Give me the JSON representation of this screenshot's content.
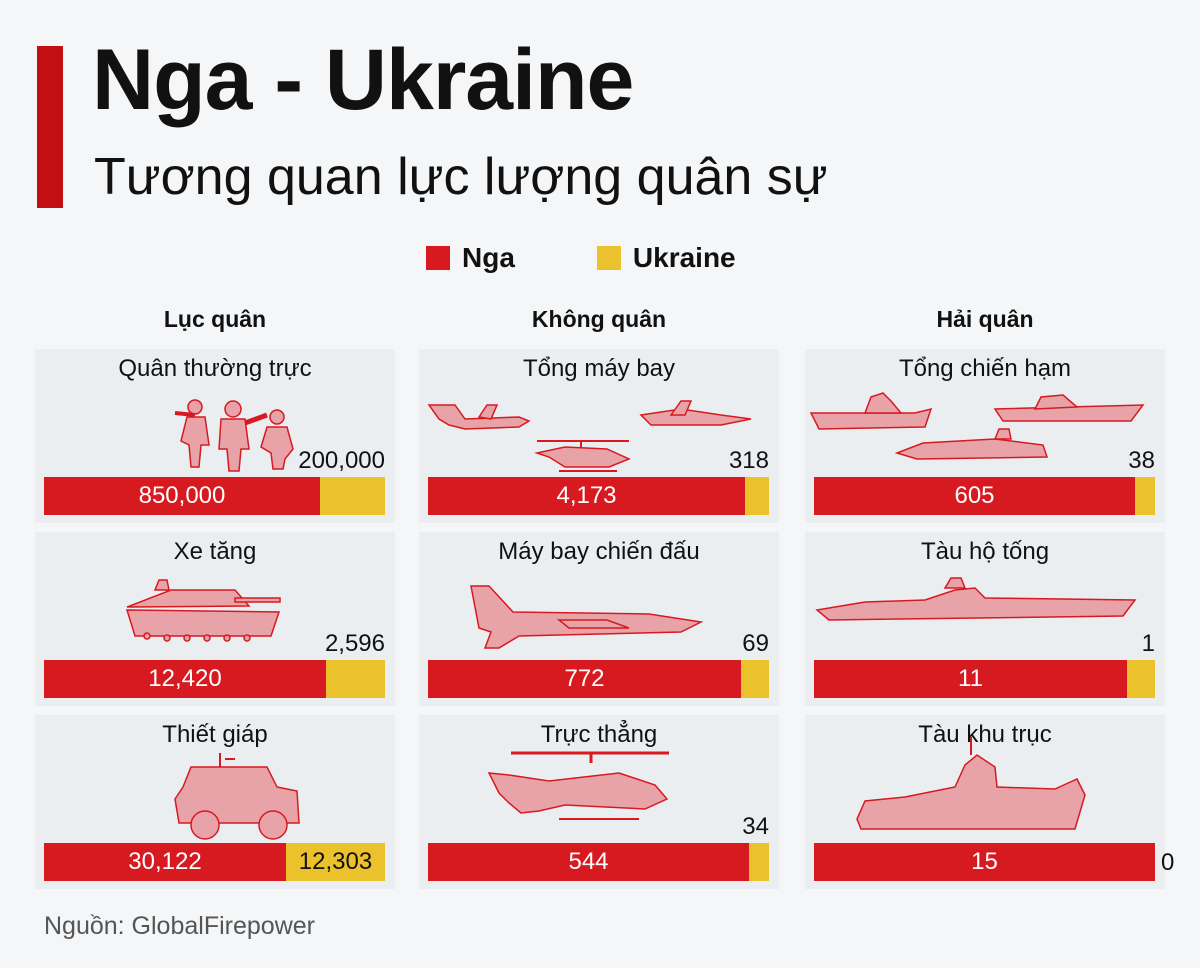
{
  "header": {
    "title": "Nga - Ukraine",
    "subtitle": "Tương quan lực lượng quân sự"
  },
  "colors": {
    "russia": "#d71920",
    "ukraine": "#ebc22b",
    "accent": "#c20f14",
    "panel": "#ebeef1",
    "background": "#f4f6f8"
  },
  "legend": {
    "russia": "Nga",
    "ukraine": "Ukraine"
  },
  "source": "Nguồn: GlobalFirepower",
  "chart_data": {
    "type": "bar",
    "orientation": "horizontal-stacked-normalized",
    "title": "Tương quan lực lượng quân sự",
    "series": [
      {
        "name": "Nga",
        "color": "#d71920"
      },
      {
        "name": "Ukraine",
        "color": "#ebc22b"
      }
    ],
    "groups": [
      {
        "name": "Lục quân",
        "items": [
          {
            "label": "Quân thường trực",
            "icon": "soldiers-icon",
            "russia": 850000,
            "ukraine": 200000,
            "russia_label": "850,000",
            "ukraine_label": "200,000"
          },
          {
            "label": "Xe tăng",
            "icon": "tank-icon",
            "russia": 12420,
            "ukraine": 2596,
            "russia_label": "12,420",
            "ukraine_label": "2,596"
          },
          {
            "label": "Thiết giáp",
            "icon": "armored-vehicle-icon",
            "russia": 30122,
            "ukraine": 12303,
            "russia_label": "30,122",
            "ukraine_label": "12,303"
          }
        ]
      },
      {
        "name": "Không quân",
        "items": [
          {
            "label": "Tổng máy bay",
            "icon": "aircraft-icon",
            "russia": 4173,
            "ukraine": 318,
            "russia_label": "4,173",
            "ukraine_label": "318"
          },
          {
            "label": "Máy bay chiến đấu",
            "icon": "fighter-jet-icon",
            "russia": 772,
            "ukraine": 69,
            "russia_label": "772",
            "ukraine_label": "69"
          },
          {
            "label": "Trực thẳng",
            "icon": "helicopter-icon",
            "russia": 544,
            "ukraine": 34,
            "russia_label": "544",
            "ukraine_label": "34"
          }
        ]
      },
      {
        "name": "Hải quân",
        "items": [
          {
            "label": "Tổng chiến hạm",
            "icon": "warships-icon",
            "russia": 605,
            "ukraine": 38,
            "russia_label": "605",
            "ukraine_label": "38"
          },
          {
            "label": "Tàu hộ tống",
            "icon": "corvette-icon",
            "russia": 11,
            "ukraine": 1,
            "russia_label": "11",
            "ukraine_label": "1"
          },
          {
            "label": "Tàu khu trục",
            "icon": "destroyer-icon",
            "russia": 15,
            "ukraine": 0,
            "russia_label": "15",
            "ukraine_label": "0"
          }
        ]
      }
    ]
  }
}
